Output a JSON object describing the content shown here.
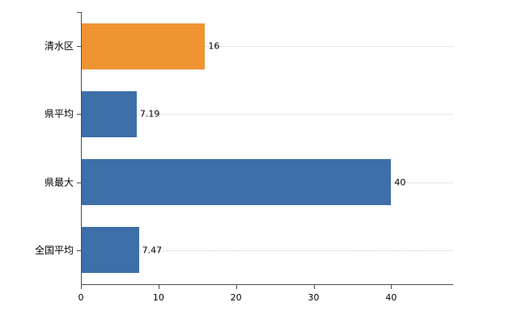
{
  "chart_data": {
    "type": "bar",
    "orientation": "horizontal",
    "title": "",
    "xlabel": "",
    "ylabel": "",
    "categories": [
      "清水区",
      "県平均",
      "県最大",
      "全国平均"
    ],
    "values": [
      16,
      7.19,
      40,
      7.47
    ],
    "value_labels": [
      "16",
      "7.19",
      "40",
      "7.47"
    ],
    "bar_colors": [
      "#ee9432",
      "#3e6fa9",
      "#3e6fa9",
      "#3e6fa9"
    ],
    "xlim": [
      0,
      48
    ],
    "x_ticks": [
      0,
      10,
      20,
      30,
      40
    ],
    "grid": "dotted-horizontal",
    "legend": "none"
  },
  "colors": {
    "axis": "#4d4d4d",
    "grid": "#cfcfcf",
    "text": "#000000",
    "background": "#ffffff",
    "accent_orange": "#ee9432",
    "accent_blue": "#3e6fa9"
  }
}
